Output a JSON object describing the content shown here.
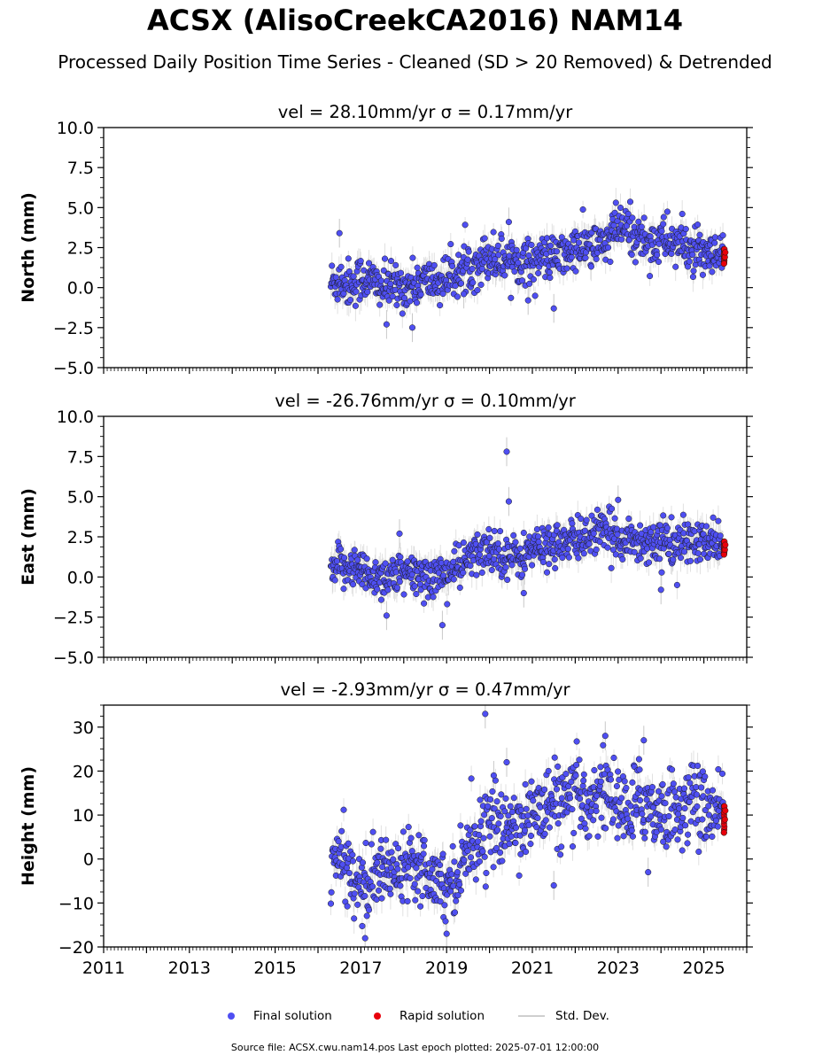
{
  "title": "ACSX (AlisoCreekCA2016) NAM14",
  "subtitle": "Processed Daily Position Time Series - Cleaned (SD > 20 Removed) & Detrended",
  "legend": {
    "final_label": "Final solution",
    "rapid_label": "Rapid solution",
    "std_label": "Std. Dev."
  },
  "footer": "Source file: ACSX.cwu.nam14.pos  Last epoch plotted: 2025-07-01 12:00:00",
  "colors": {
    "final": "#4f4ff2",
    "rapid": "#e8000b",
    "stddev": "#c8c8c8",
    "marker_edge": "#1a1a1a"
  },
  "chart_data": [
    {
      "type": "scatter",
      "panel": "north",
      "title": "vel = 28.10mm/yr   σ = 0.17mm/yr",
      "ylabel": "North (mm)",
      "xlim": [
        2011.0,
        2026.0
      ],
      "ylim": [
        -5.0,
        10.0
      ],
      "yticks": [
        "10.0",
        "7.5",
        "5.0",
        "2.5",
        "0.0",
        "−2.5",
        "−5.0"
      ],
      "ytick_values": [
        10.0,
        7.5,
        5.0,
        2.5,
        0.0,
        -2.5,
        -5.0
      ],
      "series": [
        {
          "name": "Final solution",
          "x": [
            2016.3,
            2016.5,
            2016.8,
            2017.0,
            2017.3,
            2017.5,
            2017.8,
            2018.0,
            2018.3,
            2018.5,
            2018.8,
            2019.0,
            2019.3,
            2019.5,
            2019.8,
            2020.0,
            2020.3,
            2020.5,
            2020.8,
            2021.0,
            2021.3,
            2021.5,
            2021.8,
            2022.0,
            2022.3,
            2022.5,
            2022.8,
            2023.0,
            2023.3,
            2023.5,
            2023.8,
            2024.0,
            2024.3,
            2024.5,
            2024.8,
            2025.0,
            2025.3,
            2025.45
          ],
          "y": [
            0.3,
            0.5,
            0.2,
            0.6,
            0.4,
            0.0,
            0.1,
            0.0,
            0.2,
            0.5,
            0.3,
            0.6,
            0.9,
            1.3,
            1.7,
            2.0,
            1.8,
            1.9,
            1.6,
            1.7,
            1.9,
            1.8,
            2.1,
            2.4,
            2.6,
            2.5,
            3.0,
            3.8,
            3.5,
            3.1,
            2.8,
            3.0,
            2.9,
            2.6,
            2.2,
            1.9,
            1.8,
            1.9
          ],
          "spread": [
            1.0,
            1.0,
            1.0,
            1.0,
            0.9,
            0.9,
            0.9,
            0.9,
            0.9,
            0.9,
            0.9,
            0.9,
            0.9,
            1.0,
            1.0,
            1.0,
            1.0,
            1.0,
            0.9,
            0.9,
            0.9,
            0.9,
            0.9,
            0.9,
            1.0,
            1.0,
            1.0,
            1.1,
            1.0,
            1.0,
            1.0,
            1.0,
            1.0,
            1.0,
            0.9,
            0.9,
            0.9,
            0.9
          ],
          "outliers": [
            [
              2016.5,
              3.4
            ],
            [
              2017.6,
              -2.3
            ],
            [
              2018.2,
              -2.5
            ],
            [
              2020.45,
              4.1
            ],
            [
              2021.5,
              -1.3
            ],
            [
              2020.9,
              -0.8
            ],
            [
              2019.4,
              -0.4
            ]
          ]
        },
        {
          "name": "Rapid solution",
          "x": [
            2025.47,
            2025.48,
            2025.49,
            2025.5
          ],
          "y": [
            1.5,
            2.4,
            1.9,
            2.2
          ]
        }
      ]
    },
    {
      "type": "scatter",
      "panel": "east",
      "title": "vel = -26.76mm/yr   σ = 0.10mm/yr",
      "ylabel": "East (mm)",
      "xlim": [
        2011.0,
        2026.0
      ],
      "ylim": [
        -5.0,
        10.0
      ],
      "yticks": [
        "10.0",
        "7.5",
        "5.0",
        "2.5",
        "0.0",
        "−2.5",
        "−5.0"
      ],
      "ytick_values": [
        10.0,
        7.5,
        5.0,
        2.5,
        0.0,
        -2.5,
        -5.0
      ],
      "series": [
        {
          "name": "Final solution",
          "x": [
            2016.3,
            2016.5,
            2016.8,
            2017.0,
            2017.3,
            2017.5,
            2017.8,
            2018.0,
            2018.3,
            2018.5,
            2018.8,
            2019.0,
            2019.3,
            2019.5,
            2019.8,
            2020.0,
            2020.3,
            2020.5,
            2020.8,
            2021.0,
            2021.3,
            2021.5,
            2021.8,
            2022.0,
            2022.3,
            2022.5,
            2022.8,
            2023.0,
            2023.3,
            2023.5,
            2023.8,
            2024.0,
            2024.3,
            2024.5,
            2024.8,
            2025.0,
            2025.3,
            2025.45
          ],
          "y": [
            0.3,
            0.6,
            0.8,
            0.3,
            0.1,
            0.0,
            0.2,
            0.0,
            0.2,
            0.0,
            0.1,
            0.2,
            0.6,
            1.1,
            1.5,
            1.8,
            1.5,
            1.2,
            1.3,
            1.8,
            1.8,
            2.2,
            2.0,
            2.3,
            2.6,
            2.8,
            2.6,
            2.5,
            2.4,
            2.1,
            2.3,
            2.2,
            2.0,
            2.1,
            2.2,
            2.0,
            2.1,
            2.2
          ],
          "spread": [
            0.9,
            0.9,
            0.9,
            0.9,
            0.9,
            0.9,
            0.9,
            0.9,
            0.9,
            0.9,
            0.9,
            0.9,
            0.9,
            0.9,
            0.9,
            0.9,
            0.9,
            0.9,
            0.9,
            0.9,
            0.9,
            0.9,
            0.9,
            0.9,
            0.9,
            0.9,
            0.9,
            0.9,
            0.9,
            0.9,
            0.9,
            0.9,
            0.9,
            0.9,
            0.9,
            0.9,
            0.9,
            0.9
          ],
          "outliers": [
            [
              2020.4,
              7.8
            ],
            [
              2020.45,
              4.7
            ],
            [
              2017.9,
              2.7
            ],
            [
              2018.9,
              -3.0
            ],
            [
              2020.8,
              -1.0
            ],
            [
              2023.0,
              4.8
            ],
            [
              2024.0,
              -0.8
            ],
            [
              2017.6,
              -2.4
            ]
          ]
        },
        {
          "name": "Rapid solution",
          "x": [
            2025.47,
            2025.48,
            2025.49,
            2025.5
          ],
          "y": [
            1.4,
            2.2,
            1.7,
            2.0
          ]
        }
      ]
    },
    {
      "type": "scatter",
      "panel": "height",
      "title": "vel = -2.93mm/yr   σ = 0.47mm/yr",
      "ylabel": "Height (mm)",
      "xlim": [
        2011.0,
        2026.0
      ],
      "ylim": [
        -20.0,
        35.0
      ],
      "yticks": [
        "30",
        "20",
        "10",
        "0",
        "−10",
        "−20"
      ],
      "ytick_values": [
        30,
        20,
        10,
        0,
        -10,
        -20
      ],
      "xticks": [
        "2011",
        "2013",
        "2015",
        "2017",
        "2019",
        "2021",
        "2023",
        "2025"
      ],
      "xtick_values": [
        2011,
        2013,
        2015,
        2017,
        2019,
        2021,
        2023,
        2025
      ],
      "series": [
        {
          "name": "Final solution",
          "x": [
            2016.3,
            2016.5,
            2016.8,
            2017.0,
            2017.3,
            2017.5,
            2017.8,
            2018.0,
            2018.3,
            2018.5,
            2018.8,
            2019.0,
            2019.3,
            2019.5,
            2019.8,
            2020.0,
            2020.3,
            2020.5,
            2020.8,
            2021.0,
            2021.3,
            2021.5,
            2021.8,
            2022.0,
            2022.3,
            2022.5,
            2022.8,
            2023.0,
            2023.3,
            2023.5,
            2023.8,
            2024.0,
            2024.3,
            2024.5,
            2024.8,
            2025.0,
            2025.3,
            2025.45
          ],
          "y": [
            -2.0,
            0.0,
            -3.0,
            -6.0,
            -5.0,
            -2.0,
            -3.0,
            0.0,
            0.0,
            -2.0,
            -4.0,
            -6.0,
            -3.0,
            4.0,
            5.0,
            8.0,
            6.0,
            8.0,
            9.0,
            10.0,
            12.0,
            13.0,
            12.0,
            14.0,
            13.0,
            15.0,
            16.0,
            12.0,
            10.0,
            14.0,
            12.0,
            10.0,
            12.0,
            11.0,
            14.0,
            12.0,
            10.0,
            10.0
          ],
          "spread": [
            5.0,
            5.0,
            5.0,
            5.5,
            5.5,
            5.0,
            5.0,
            5.0,
            5.0,
            5.0,
            5.0,
            5.0,
            5.0,
            5.5,
            5.5,
            5.5,
            5.5,
            5.5,
            5.5,
            5.5,
            6.0,
            6.0,
            6.0,
            6.0,
            6.0,
            6.0,
            6.0,
            6.0,
            6.0,
            6.0,
            6.0,
            6.0,
            6.0,
            6.0,
            6.0,
            5.5,
            5.0,
            4.5
          ],
          "outliers": [
            [
              2019.9,
              33.0
            ],
            [
              2020.4,
              22.0
            ],
            [
              2022.7,
              28.0
            ],
            [
              2021.5,
              -6.0
            ],
            [
              2017.1,
              -18.0
            ],
            [
              2019.0,
              -17.0
            ],
            [
              2023.6,
              27.0
            ],
            [
              2023.7,
              -3.0
            ],
            [
              2020.1,
              19.0
            ]
          ]
        },
        {
          "name": "Rapid solution",
          "x": [
            2025.47,
            2025.48,
            2025.49,
            2025.5
          ],
          "y": [
            6.0,
            12.0,
            9.0,
            11.0
          ]
        }
      ]
    }
  ]
}
